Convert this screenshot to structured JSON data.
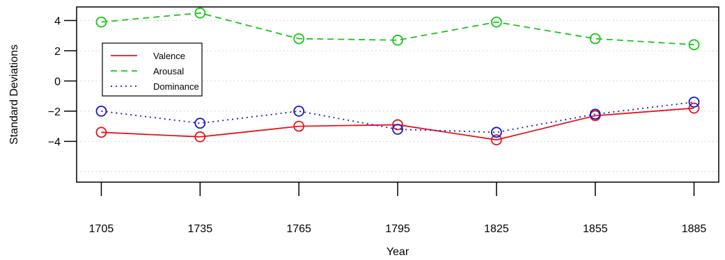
{
  "chart_data": {
    "type": "line",
    "title": "",
    "xlabel": "Year",
    "ylabel": "Standard Deviations",
    "x": [
      1705,
      1735,
      1765,
      1795,
      1825,
      1855,
      1885
    ],
    "x_ticks": [
      "1705",
      "1735",
      "1765",
      "1795",
      "1825",
      "1855",
      "1885"
    ],
    "y_ticks": [
      "4",
      "2",
      "0",
      "−2",
      "−4"
    ],
    "y_tick_values": [
      4,
      2,
      0,
      -2,
      -4
    ],
    "xlim": [
      1697.5,
      1892.5
    ],
    "ylim": [
      -6.7,
      4.9
    ],
    "grid_y": [
      4,
      2,
      0,
      -2,
      -4,
      -6
    ],
    "grid": "horizontal dotted",
    "legend_position": "top-left",
    "series": [
      {
        "name": "Valence",
        "color": "#e8141b",
        "dash": "solid",
        "marker": "circle-open",
        "values": [
          -3.4,
          -3.7,
          -3.0,
          -2.9,
          -3.9,
          -2.3,
          -1.8
        ]
      },
      {
        "name": "Arousal",
        "color": "#19c419",
        "dash": "dashed",
        "marker": "circle-open",
        "values": [
          3.9,
          4.5,
          2.8,
          2.7,
          3.9,
          2.8,
          2.4
        ]
      },
      {
        "name": "Dominance",
        "color": "#1717c9",
        "dash": "dotted",
        "marker": "circle-open",
        "values": [
          -2.0,
          -2.8,
          -2.0,
          -3.2,
          -3.4,
          -2.2,
          -1.4
        ]
      }
    ]
  }
}
